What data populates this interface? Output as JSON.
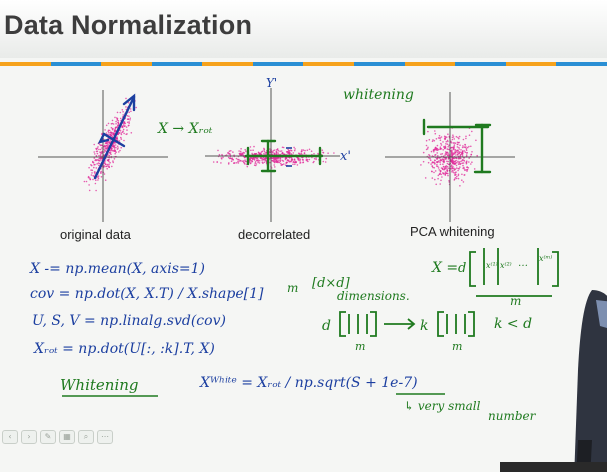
{
  "slide": {
    "title": "Data Normalization",
    "stripe_colors": [
      "#f6a21c",
      "#2a8fd4",
      "#f6a21c",
      "#2a8fd4",
      "#f6a21c",
      "#2a8fd4",
      "#f6a21c",
      "#2a8fd4",
      "#f6a21c",
      "#2a8fd4",
      "#f6a21c",
      "#2a8fd4"
    ],
    "captions": {
      "original": "original data",
      "decorrelated": "decorrelated",
      "whitening": "PCA whitening"
    }
  },
  "annotations": {
    "x_rot_arrow": "X → Xᵣₒₜ",
    "axis_y_prime": "Y'",
    "axis_x_prime": "x'",
    "whitening_label": "whitening",
    "dims_label": "[d×d]",
    "dimensions_word": "dimensions.",
    "m_label": "m",
    "k_less_d": "k < d",
    "very_small": "↳ very small",
    "number_word": "number"
  },
  "code_lines": {
    "line1": "X -= np.mean(X, axis=1)",
    "line2": "cov = np.dot(X, X.T) / X.shape[1]",
    "line3": "U, S, V = np.linalg.svd(cov)",
    "line4": "Xᵣₒₜ = np.dot(U[:, :k].T, X)",
    "line5": "Xᵂʰⁱᵗᵉ = Xᵣₒₜ / np.sqrt(S + 1e-7)",
    "whitening_heading": "Whitening"
  },
  "matrix_note": {
    "lhs": "X =",
    "d": "d",
    "col1": "x⁽¹⁾",
    "col2": "x⁽²⁾",
    "dots": "…",
    "colm": "x⁽ᵐ⁾",
    "ones": "1"
  },
  "projection": {
    "left_dim": "d",
    "right_dim": "k",
    "arrow": "→",
    "m": "m"
  },
  "toolbar": {
    "icons": [
      "arrow-left-icon",
      "arrow-right-icon",
      "pen-icon",
      "grid-icon",
      "zoom-icon",
      "more-icon"
    ],
    "glyphs": [
      "‹",
      "›",
      "✎",
      "▦",
      "⌕",
      "⋯"
    ]
  }
}
